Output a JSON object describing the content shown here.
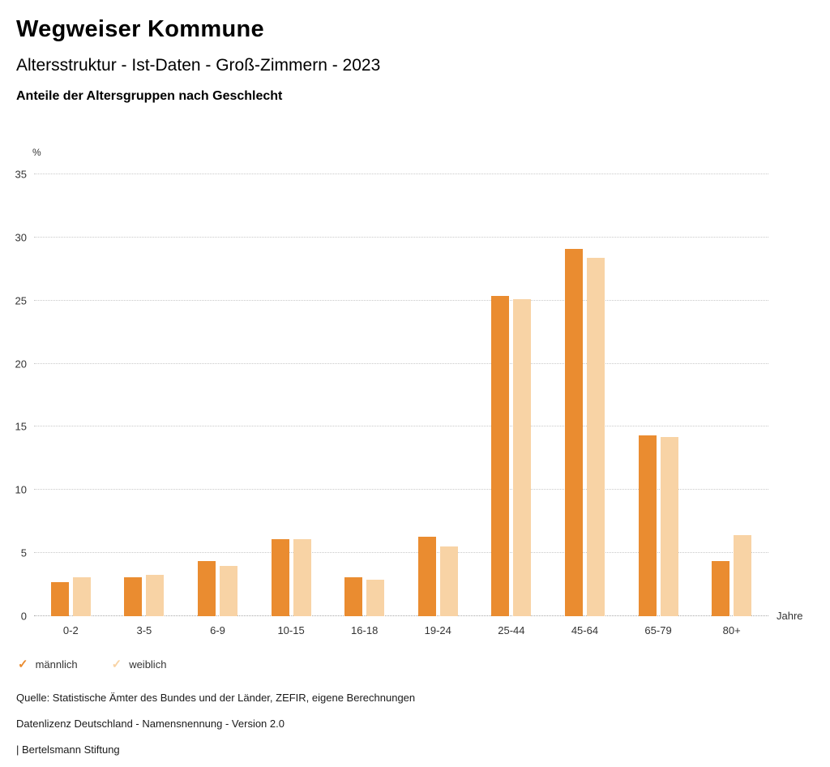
{
  "header": {
    "title": "Wegweiser Kommune",
    "subtitle": "Altersstruktur - Ist-Daten - Groß-Zimmern - 2023",
    "chart_heading": "Anteile der Altersgruppen nach Geschlecht"
  },
  "chart_data": {
    "type": "bar",
    "title": "Anteile der Altersgruppen nach Geschlecht",
    "categories": [
      "0-2",
      "3-5",
      "6-9",
      "10-15",
      "16-18",
      "19-24",
      "25-44",
      "45-64",
      "65-79",
      "80+"
    ],
    "series": [
      {
        "name": "männlich",
        "key": "maennlich",
        "color": "#EA8C30",
        "values": [
          2.7,
          3.1,
          4.4,
          6.1,
          3.1,
          6.3,
          25.4,
          29.1,
          14.3,
          4.4
        ]
      },
      {
        "name": "weiblich",
        "key": "weiblich",
        "color": "#F8D3A5",
        "values": [
          3.1,
          3.3,
          4.0,
          6.1,
          2.9,
          5.5,
          25.1,
          28.4,
          14.2,
          6.4
        ]
      }
    ],
    "xlabel": "Jahre",
    "ylabel": "%",
    "ylim": [
      0,
      35
    ],
    "yticks": [
      0,
      5,
      10,
      15,
      20,
      25,
      30,
      35
    ],
    "grid": true,
    "legend_position": "bottom-left",
    "legend_check_glyph": "✓"
  },
  "footer": {
    "source": "Quelle: Statistische Ämter des Bundes und der Länder, ZEFIR, eigene Berechnungen",
    "license": "Datenlizenz Deutschland - Namensnennung - Version 2.0",
    "attribution": "| Bertelsmann Stiftung"
  }
}
